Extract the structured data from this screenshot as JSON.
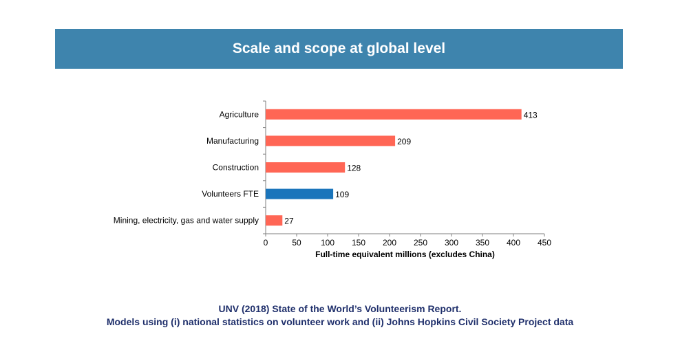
{
  "header": {
    "title": "Scale and scope at global level",
    "background": "#3e84ad"
  },
  "chart_data": {
    "type": "bar",
    "orientation": "horizontal",
    "categories": [
      "Agriculture",
      "Manufacturing",
      "Construction",
      "Volunteers FTE",
      "Mining, electricity, gas and water supply"
    ],
    "values": [
      413,
      209,
      128,
      109,
      27
    ],
    "colors": [
      "#ff6655",
      "#ff6655",
      "#ff6655",
      "#1b75bb",
      "#ff6655"
    ],
    "xlabel": "Full-time equivalent millions (excludes China)",
    "ylabel": "",
    "xlim": [
      0,
      450
    ],
    "xticks": [
      0,
      50,
      100,
      150,
      200,
      250,
      300,
      350,
      400,
      450
    ],
    "grid": false,
    "legend": false,
    "data_labels": true
  },
  "source": {
    "line1": "UNV (2018) State of the World’s Volunteerism Report.",
    "line2": "Models using (i) national statistics on volunteer work and (ii)  Johns Hopkins Civil Society Project data"
  }
}
